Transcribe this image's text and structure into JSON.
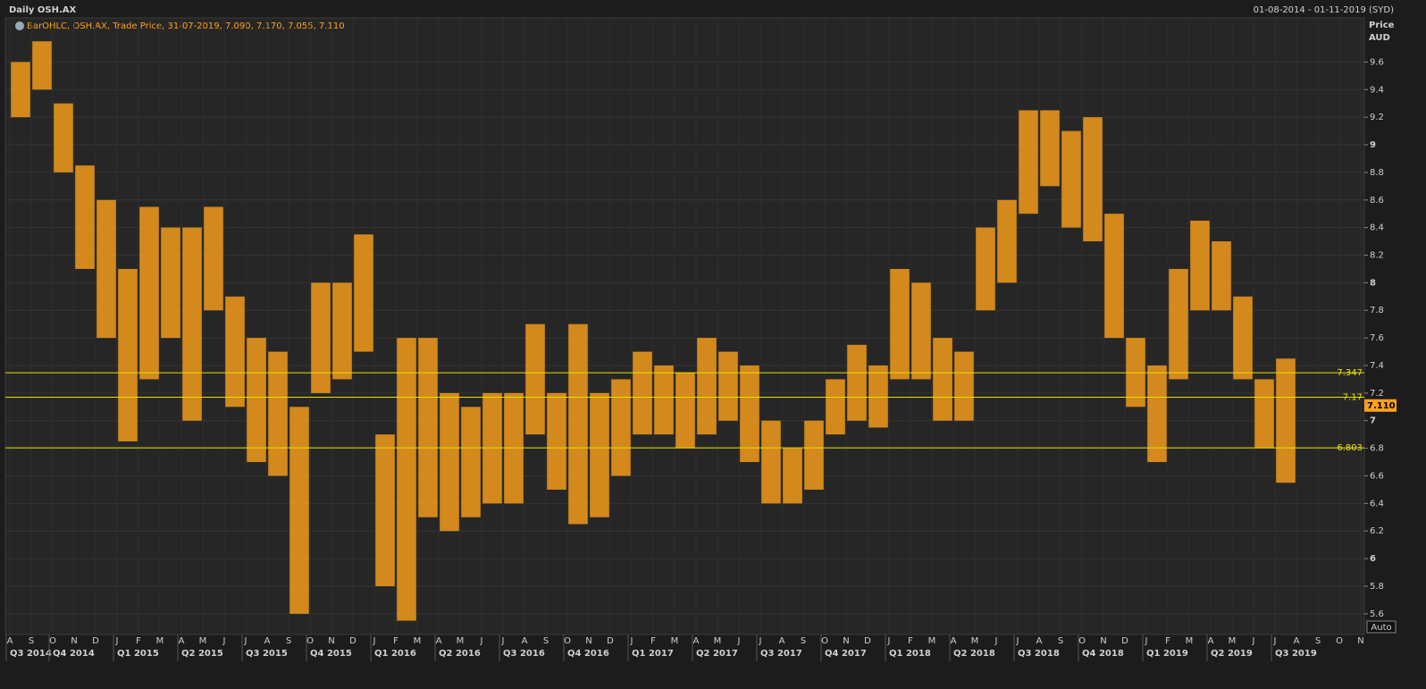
{
  "chart_data": {
    "type": "ohlc",
    "title": "Daily OSH.AX",
    "date_range": "01-08-2014 - 01-11-2019 (SYD)",
    "legend": "BarOHLC, OSH.AX, Trade Price, 31-07-2019, 7.090, 7.170, 7.055, 7.110",
    "axis_label": "Price",
    "axis_unit": "AUD",
    "scale_button": "Auto",
    "color": "#ffa21a",
    "categories": [
      "A",
      "S",
      "O",
      "N",
      "D",
      "J",
      "F",
      "M",
      "A",
      "M",
      "J",
      "J",
      "A",
      "S",
      "O",
      "N",
      "D",
      "J",
      "F",
      "M",
      "A",
      "M",
      "J",
      "J",
      "A",
      "S",
      "O",
      "N",
      "D",
      "J",
      "F",
      "M",
      "A",
      "M",
      "J",
      "J",
      "A",
      "S",
      "O",
      "N",
      "D",
      "J",
      "F",
      "M",
      "A",
      "M",
      "J",
      "J",
      "A",
      "S",
      "O",
      "N",
      "D",
      "J",
      "F",
      "M",
      "A",
      "M",
      "J",
      "J",
      "A",
      "S",
      "O",
      "N"
    ],
    "quarters": [
      "Q3 2014",
      "Q4 2014",
      "Q1 2015",
      "Q2 2015",
      "Q3 2015",
      "Q4 2015",
      "Q1 2016",
      "Q2 2016",
      "Q3 2016",
      "Q4 2016",
      "Q1 2017",
      "Q2 2017",
      "Q3 2017",
      "Q4 2017",
      "Q1 2018",
      "Q2 2018",
      "Q3 2018",
      "Q4 2018",
      "Q1 2019",
      "Q2 2019",
      "Q3 2019"
    ],
    "high": [
      9.6,
      9.75,
      9.3,
      8.85,
      8.6,
      8.1,
      8.55,
      8.4,
      8.4,
      8.55,
      7.9,
      7.6,
      7.5,
      7.1,
      8.0,
      8.0,
      8.35,
      6.9,
      7.6,
      7.6,
      7.2,
      7.1,
      7.2,
      7.2,
      7.7,
      7.2,
      7.7,
      7.2,
      7.3,
      7.5,
      7.4,
      7.35,
      7.6,
      7.5,
      7.4,
      7.0,
      6.8,
      7.0,
      7.3,
      7.55,
      7.4,
      8.1,
      8.0,
      7.6,
      7.5,
      8.4,
      8.6,
      9.25,
      9.25,
      9.1,
      9.2,
      8.5,
      7.6,
      7.4,
      8.1,
      8.45,
      8.3,
      7.9,
      7.3,
      7.45,
      null,
      null,
      null,
      null
    ],
    "low": [
      9.2,
      9.4,
      8.8,
      8.1,
      7.6,
      6.85,
      7.3,
      7.6,
      7.0,
      7.8,
      7.1,
      6.7,
      6.6,
      5.6,
      7.2,
      7.3,
      7.5,
      5.8,
      5.55,
      6.3,
      6.2,
      6.3,
      6.4,
      6.4,
      6.9,
      6.5,
      6.25,
      6.3,
      6.6,
      6.9,
      6.9,
      6.8,
      6.9,
      7.0,
      6.7,
      6.4,
      6.4,
      6.5,
      6.9,
      7.0,
      6.95,
      7.3,
      7.3,
      7.0,
      7.0,
      7.8,
      8.0,
      8.5,
      8.7,
      8.4,
      8.3,
      7.6,
      7.1,
      6.7,
      7.3,
      7.8,
      7.8,
      7.3,
      6.8,
      6.55,
      null,
      null,
      null,
      null
    ],
    "levels": [
      {
        "value": 7.347,
        "label": "7.347"
      },
      {
        "value": 7.17,
        "label": "7.17"
      },
      {
        "value": 6.803,
        "label": "6.803"
      }
    ],
    "last_price": {
      "value": 7.11,
      "label": "7.110"
    },
    "ylim": [
      5.45,
      9.92
    ],
    "yticks": [
      5.6,
      5.8,
      6,
      6.2,
      6.4,
      6.6,
      6.8,
      7,
      7.2,
      7.4,
      7.6,
      7.8,
      8,
      8.2,
      8.4,
      8.6,
      8.8,
      9,
      9.2,
      9.4,
      9.6
    ],
    "grid": true
  }
}
